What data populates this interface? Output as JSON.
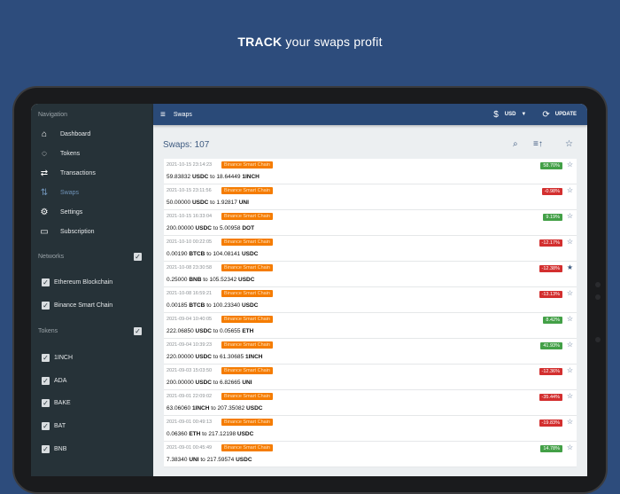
{
  "headline": {
    "strong": "TRACK",
    "rest": " your swaps profit"
  },
  "sidebar": {
    "nav_title": "Navigation",
    "items": [
      {
        "label": "Dashboard",
        "icon": "home-icon",
        "glyph": "⌂"
      },
      {
        "label": "Tokens",
        "icon": "tokens-icon",
        "glyph": "◌"
      },
      {
        "label": "Transactions",
        "icon": "swap-arrows-icon",
        "glyph": "⇄"
      },
      {
        "label": "Swaps",
        "icon": "swaps-icon",
        "glyph": "⇅",
        "active": true
      },
      {
        "label": "Settings",
        "icon": "gear-icon",
        "glyph": "⚙"
      },
      {
        "label": "Subscription",
        "icon": "monitor-icon",
        "glyph": "▭"
      }
    ],
    "networks_title": "Networks",
    "networks": [
      "Ethereum Blockchain",
      "Binance Smart Chain"
    ],
    "tokens_title": "Tokens",
    "tokens": [
      "1INCH",
      "ADA",
      "BAKE",
      "BAT",
      "BNB"
    ]
  },
  "topbar": {
    "title": "Swaps",
    "currency": "USD",
    "update": "UPDATE"
  },
  "main": {
    "title": "Swaps: 107"
  },
  "colors": {
    "positive": "#43a047",
    "negative": "#d32f2f",
    "chain": "#f57c00",
    "header": "#2a4a78"
  },
  "swaps": [
    {
      "time": "2021-10-15 23:14:23",
      "chain": "Binance Smart Chain",
      "pct": "58.70%",
      "pos": true,
      "fav": false,
      "a": "59.83832",
      "at": "USDC",
      "b": "18.64449",
      "bt": "1INCH"
    },
    {
      "time": "2021-10-15 23:11:56",
      "chain": "Binance Smart Chain",
      "pct": "-0.98%",
      "pos": false,
      "fav": false,
      "a": "50.00000",
      "at": "USDC",
      "b": "1.92817",
      "bt": "UNI"
    },
    {
      "time": "2021-10-15 16:33:04",
      "chain": "Binance Smart Chain",
      "pct": "9.19%",
      "pos": true,
      "fav": false,
      "a": "200.00000",
      "at": "USDC",
      "b": "5.00958",
      "bt": "DOT"
    },
    {
      "time": "2021-10-10 00:22:05",
      "chain": "Binance Smart Chain",
      "pct": "-12.17%",
      "pos": false,
      "fav": false,
      "a": "0.00190",
      "at": "BTCB",
      "b": "104.08141",
      "bt": "USDC"
    },
    {
      "time": "2021-10-08 23:30:58",
      "chain": "Binance Smart Chain",
      "pct": "-12.38%",
      "pos": false,
      "fav": true,
      "a": "0.25000",
      "at": "BNB",
      "b": "105.52342",
      "bt": "USDC"
    },
    {
      "time": "2021-10-08 16:59:21",
      "chain": "Binance Smart Chain",
      "pct": "-13.13%",
      "pos": false,
      "fav": false,
      "a": "0.00185",
      "at": "BTCB",
      "b": "100.23340",
      "bt": "USDC"
    },
    {
      "time": "2021-09-04 10:40:05",
      "chain": "Binance Smart Chain",
      "pct": "8.42%",
      "pos": true,
      "fav": false,
      "a": "222.06850",
      "at": "USDC",
      "b": "0.05655",
      "bt": "ETH"
    },
    {
      "time": "2021-09-04 10:39:23",
      "chain": "Binance Smart Chain",
      "pct": "41.93%",
      "pos": true,
      "fav": false,
      "a": "220.00000",
      "at": "USDC",
      "b": "61.30685",
      "bt": "1INCH"
    },
    {
      "time": "2021-09-03 15:03:50",
      "chain": "Binance Smart Chain",
      "pct": "-12.36%",
      "pos": false,
      "fav": false,
      "a": "200.00000",
      "at": "USDC",
      "b": "6.82665",
      "bt": "UNI"
    },
    {
      "time": "2021-09-01 22:09:02",
      "chain": "Binance Smart Chain",
      "pct": "-35.44%",
      "pos": false,
      "fav": false,
      "a": "63.06060",
      "at": "1INCH",
      "b": "207.35082",
      "bt": "USDC"
    },
    {
      "time": "2021-09-01 00:49:13",
      "chain": "Binance Smart Chain",
      "pct": "-19.83%",
      "pos": false,
      "fav": false,
      "a": "0.06360",
      "at": "ETH",
      "b": "217.12198",
      "bt": "USDC"
    },
    {
      "time": "2021-09-01 00:45:49",
      "chain": "Binance Smart Chain",
      "pct": "14.78%",
      "pos": true,
      "fav": false,
      "a": "7.38340",
      "at": "UNI",
      "b": "217.59574",
      "bt": "USDC"
    }
  ],
  "to_word": "to"
}
